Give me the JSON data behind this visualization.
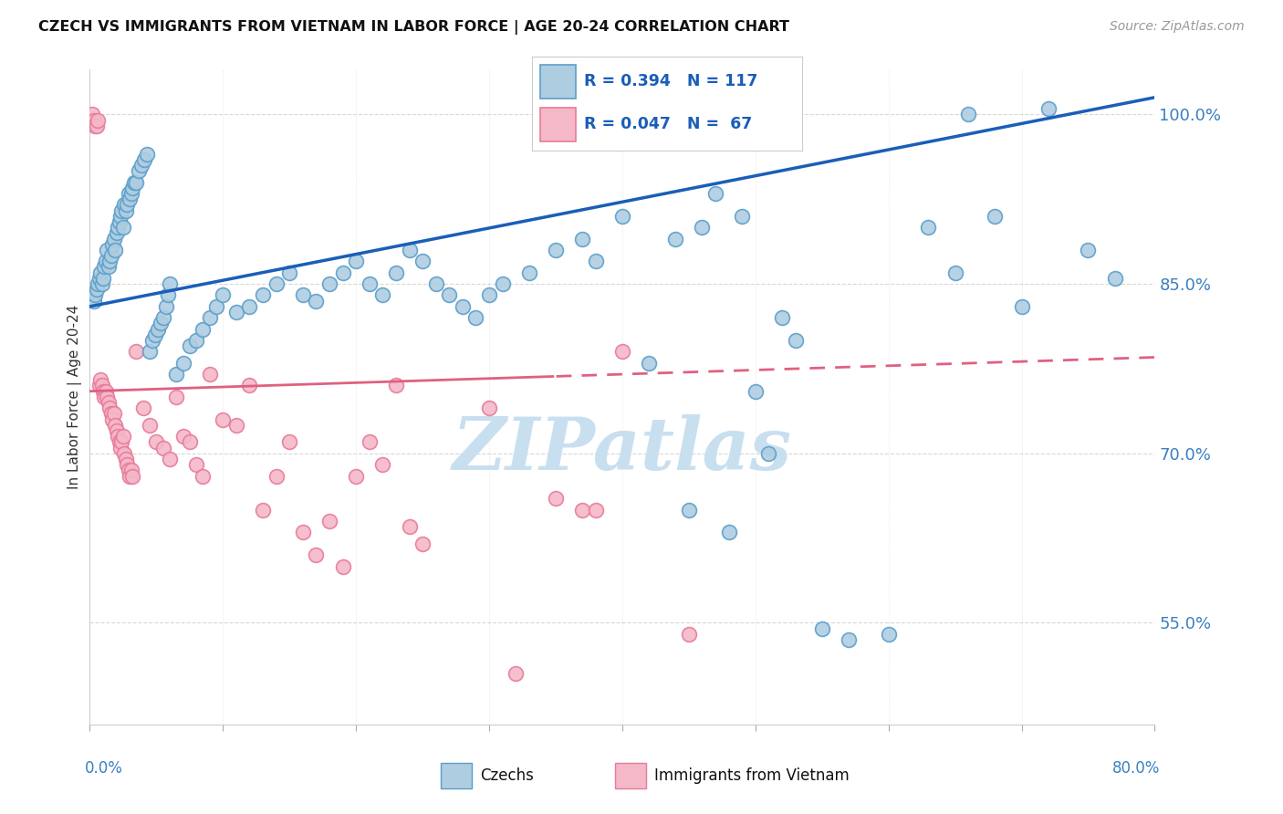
{
  "title": "CZECH VS IMMIGRANTS FROM VIETNAM IN LABOR FORCE | AGE 20-24 CORRELATION CHART",
  "source": "Source: ZipAtlas.com",
  "ylabel": "In Labor Force | Age 20-24",
  "xmin": 0.0,
  "xmax": 80.0,
  "ymin": 46.0,
  "ymax": 104.0,
  "yticks": [
    55.0,
    70.0,
    85.0,
    100.0
  ],
  "ytick_labels": [
    "55.0%",
    "70.0%",
    "85.0%",
    "100.0%"
  ],
  "blue_color": "#aecde1",
  "blue_edge": "#5b9ec9",
  "pink_color": "#f4b8c8",
  "pink_edge": "#e87a9a",
  "trend_blue_color": "#1a5eb8",
  "trend_pink_color": "#e06080",
  "blue_trend_x0": 0.0,
  "blue_trend_y0": 83.0,
  "blue_trend_x1": 80.0,
  "blue_trend_y1": 101.5,
  "pink_trend_x0": 0.0,
  "pink_trend_y0": 75.5,
  "pink_trend_x1": 80.0,
  "pink_trend_y1": 78.5,
  "pink_solid_end": 35.0,
  "watermark": "ZIPatlas",
  "watermark_color": "#c8dff0",
  "blue_x": [
    0.3,
    0.4,
    0.5,
    0.6,
    0.7,
    0.8,
    0.9,
    1.0,
    1.1,
    1.2,
    1.3,
    1.4,
    1.5,
    1.6,
    1.7,
    1.8,
    1.9,
    2.0,
    2.1,
    2.2,
    2.3,
    2.4,
    2.5,
    2.6,
    2.7,
    2.8,
    2.9,
    3.0,
    3.1,
    3.2,
    3.3,
    3.5,
    3.7,
    3.9,
    4.1,
    4.3,
    4.5,
    4.7,
    4.9,
    5.1,
    5.3,
    5.5,
    5.7,
    5.9,
    6.0,
    6.5,
    7.0,
    7.5,
    8.0,
    8.5,
    9.0,
    9.5,
    10.0,
    11.0,
    12.0,
    13.0,
    14.0,
    15.0,
    16.0,
    17.0,
    18.0,
    19.0,
    20.0,
    21.0,
    22.0,
    23.0,
    24.0,
    25.0,
    26.0,
    27.0,
    28.0,
    29.0,
    30.0,
    31.0,
    33.0,
    35.0,
    37.0,
    38.0,
    40.0,
    42.0,
    44.0,
    45.0,
    46.0,
    47.0,
    48.0,
    49.0,
    50.0,
    51.0,
    52.0,
    53.0,
    55.0,
    57.0,
    60.0,
    63.0,
    65.0,
    66.0,
    68.0,
    70.0,
    72.0,
    75.0,
    77.0
  ],
  "blue_y": [
    83.5,
    84.0,
    84.5,
    85.0,
    85.5,
    86.0,
    85.0,
    85.5,
    86.5,
    87.0,
    88.0,
    86.5,
    87.0,
    87.5,
    88.5,
    89.0,
    88.0,
    89.5,
    90.0,
    90.5,
    91.0,
    91.5,
    90.0,
    92.0,
    91.5,
    92.0,
    93.0,
    92.5,
    93.0,
    93.5,
    94.0,
    94.0,
    95.0,
    95.5,
    96.0,
    96.5,
    79.0,
    80.0,
    80.5,
    81.0,
    81.5,
    82.0,
    83.0,
    84.0,
    85.0,
    77.0,
    78.0,
    79.5,
    80.0,
    81.0,
    82.0,
    83.0,
    84.0,
    82.5,
    83.0,
    84.0,
    85.0,
    86.0,
    84.0,
    83.5,
    85.0,
    86.0,
    87.0,
    85.0,
    84.0,
    86.0,
    88.0,
    87.0,
    85.0,
    84.0,
    83.0,
    82.0,
    84.0,
    85.0,
    86.0,
    88.0,
    89.0,
    87.0,
    91.0,
    78.0,
    89.0,
    65.0,
    90.0,
    93.0,
    63.0,
    91.0,
    75.5,
    70.0,
    82.0,
    80.0,
    54.5,
    53.5,
    54.0,
    90.0,
    86.0,
    100.0,
    91.0,
    83.0,
    100.5,
    88.0,
    85.5
  ],
  "pink_x": [
    0.2,
    0.3,
    0.4,
    0.5,
    0.6,
    0.7,
    0.8,
    0.9,
    1.0,
    1.1,
    1.2,
    1.3,
    1.4,
    1.5,
    1.6,
    1.7,
    1.8,
    1.9,
    2.0,
    2.1,
    2.2,
    2.3,
    2.4,
    2.5,
    2.6,
    2.7,
    2.8,
    2.9,
    3.0,
    3.1,
    3.2,
    3.5,
    4.0,
    4.5,
    5.0,
    5.5,
    6.0,
    6.5,
    7.0,
    7.5,
    8.0,
    8.5,
    9.0,
    10.0,
    11.0,
    12.0,
    13.0,
    14.0,
    15.0,
    16.0,
    17.0,
    18.0,
    19.0,
    20.0,
    21.0,
    22.0,
    23.0,
    24.0,
    25.0,
    30.0,
    32.0,
    35.0,
    37.0,
    38.0,
    40.0,
    45.0
  ],
  "pink_y": [
    100.0,
    99.5,
    99.0,
    99.0,
    99.5,
    76.0,
    76.5,
    76.0,
    75.5,
    75.0,
    75.5,
    75.0,
    74.5,
    74.0,
    73.5,
    73.0,
    73.5,
    72.5,
    72.0,
    71.5,
    71.0,
    70.5,
    71.0,
    71.5,
    70.0,
    69.5,
    69.0,
    68.5,
    68.0,
    68.5,
    68.0,
    79.0,
    74.0,
    72.5,
    71.0,
    70.5,
    69.5,
    75.0,
    71.5,
    71.0,
    69.0,
    68.0,
    77.0,
    73.0,
    72.5,
    76.0,
    65.0,
    68.0,
    71.0,
    63.0,
    61.0,
    64.0,
    60.0,
    68.0,
    71.0,
    69.0,
    76.0,
    63.5,
    62.0,
    74.0,
    50.5,
    66.0,
    65.0,
    65.0,
    79.0,
    54.0
  ]
}
